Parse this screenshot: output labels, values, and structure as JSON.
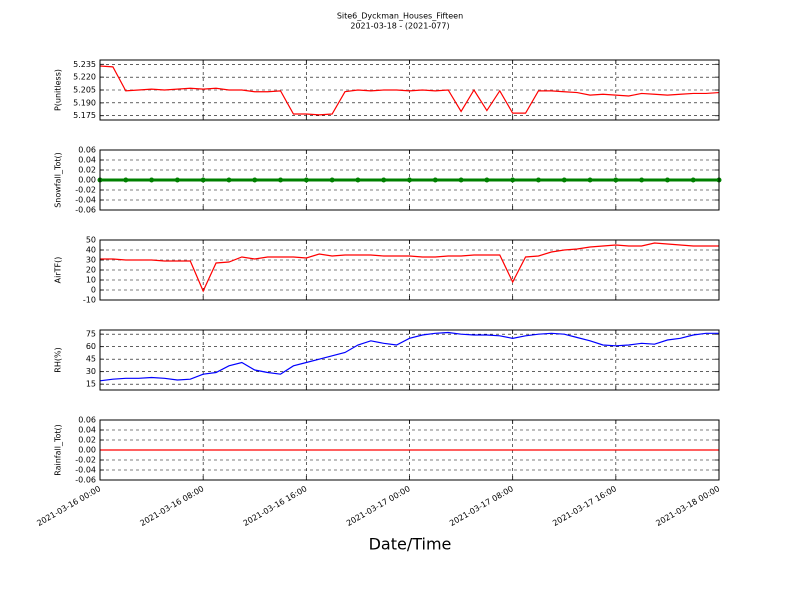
{
  "chart_data": [
    {
      "type": "line",
      "title": "Site6_Dyckman_Houses_Fifteen",
      "subtitle": "2021-03-18 - (2021-077)",
      "y_label": "P(unitless)",
      "x": [
        "2021-03-16 00:00",
        "2021-03-16 01:00",
        "2021-03-16 02:00",
        "2021-03-16 03:00",
        "2021-03-16 04:00",
        "2021-03-16 05:00",
        "2021-03-16 06:00",
        "2021-03-16 07:00",
        "2021-03-16 08:00",
        "2021-03-16 09:00",
        "2021-03-16 10:00",
        "2021-03-16 11:00",
        "2021-03-16 12:00",
        "2021-03-16 13:00",
        "2021-03-16 14:00",
        "2021-03-16 15:00",
        "2021-03-16 16:00",
        "2021-03-16 17:00",
        "2021-03-16 18:00",
        "2021-03-16 19:00",
        "2021-03-16 20:00",
        "2021-03-16 21:00",
        "2021-03-16 22:00",
        "2021-03-16 23:00",
        "2021-03-17 00:00",
        "2021-03-17 01:00",
        "2021-03-17 02:00",
        "2021-03-17 03:00",
        "2021-03-17 04:00",
        "2021-03-17 05:00",
        "2021-03-17 06:00",
        "2021-03-17 07:00",
        "2021-03-17 08:00",
        "2021-03-17 09:00",
        "2021-03-17 10:00",
        "2021-03-17 11:00",
        "2021-03-17 12:00",
        "2021-03-17 13:00",
        "2021-03-17 14:00",
        "2021-03-17 15:00",
        "2021-03-17 16:00",
        "2021-03-17 17:00",
        "2021-03-17 18:00",
        "2021-03-17 19:00",
        "2021-03-17 20:00",
        "2021-03-17 21:00",
        "2021-03-17 22:00",
        "2021-03-17 23:00",
        "2021-03-18 00:00"
      ],
      "series": [
        {
          "color": "#ff0000",
          "values": [
            5.233,
            5.232,
            5.204,
            5.205,
            5.206,
            5.205,
            5.206,
            5.207,
            5.206,
            5.207,
            5.205,
            5.205,
            5.203,
            5.203,
            5.204,
            5.177,
            5.177,
            5.176,
            5.177,
            5.203,
            5.205,
            5.204,
            5.205,
            5.205,
            5.204,
            5.205,
            5.204,
            5.205,
            5.18,
            5.205,
            5.181,
            5.204,
            5.178,
            5.178,
            5.204,
            5.204,
            5.203,
            5.202,
            5.199,
            5.2,
            5.199,
            5.198,
            5.201,
            5.2,
            5.199,
            5.2,
            5.201,
            5.201,
            5.202
          ]
        }
      ],
      "xlim": [
        "2021-03-16 00:00",
        "2021-03-18 00:00"
      ],
      "xticks": [
        "2021-03-16 00:00",
        "2021-03-16 08:00",
        "2021-03-16 16:00",
        "2021-03-17 00:00",
        "2021-03-17 08:00",
        "2021-03-17 16:00",
        "2021-03-18 00:00"
      ],
      "ylim": [
        5.17,
        5.24
      ],
      "yticks": [
        5.175,
        {
          "value": 5.19,
          "label": "5.190"
        },
        5.205,
        {
          "value": 5.22,
          "label": "5.220"
        },
        5.235
      ],
      "grid": true
    },
    {
      "type": "line",
      "y_label": "Snowfall_Tot()",
      "marker": true,
      "x": [
        "2021-03-16 00:00",
        "2021-03-16 02:00",
        "2021-03-16 04:00",
        "2021-03-16 06:00",
        "2021-03-16 08:00",
        "2021-03-16 10:00",
        "2021-03-16 12:00",
        "2021-03-16 14:00",
        "2021-03-16 16:00",
        "2021-03-16 18:00",
        "2021-03-16 20:00",
        "2021-03-16 22:00",
        "2021-03-17 00:00",
        "2021-03-17 02:00",
        "2021-03-17 04:00",
        "2021-03-17 06:00",
        "2021-03-17 08:00",
        "2021-03-17 10:00",
        "2021-03-17 12:00",
        "2021-03-17 14:00",
        "2021-03-17 16:00",
        "2021-03-17 18:00",
        "2021-03-17 20:00",
        "2021-03-17 22:00",
        "2021-03-18 00:00"
      ],
      "series": [
        {
          "color": "#008000",
          "values": [
            0,
            0,
            0,
            0,
            0,
            0,
            0,
            0,
            0,
            0,
            0,
            0,
            0,
            0,
            0,
            0,
            0,
            0,
            0,
            0,
            0,
            0,
            0,
            0,
            0
          ]
        }
      ],
      "xlim": [
        "2021-03-16 00:00",
        "2021-03-18 00:00"
      ],
      "xticks": [
        "2021-03-16 00:00",
        "2021-03-16 08:00",
        "2021-03-16 16:00",
        "2021-03-17 00:00",
        "2021-03-17 08:00",
        "2021-03-17 16:00",
        "2021-03-18 00:00"
      ],
      "ylim": [
        -0.06,
        0.06
      ],
      "yticks": [
        -0.06,
        -0.04,
        -0.02,
        {
          "value": 0,
          "label": "0.00"
        },
        0.02,
        0.04,
        0.06
      ],
      "grid": true
    },
    {
      "type": "line",
      "y_label": "AirTF()",
      "x": [
        "2021-03-16 00:00",
        "2021-03-16 01:00",
        "2021-03-16 02:00",
        "2021-03-16 03:00",
        "2021-03-16 04:00",
        "2021-03-16 05:00",
        "2021-03-16 06:00",
        "2021-03-16 07:00",
        "2021-03-16 08:00",
        "2021-03-16 09:00",
        "2021-03-16 10:00",
        "2021-03-16 11:00",
        "2021-03-16 12:00",
        "2021-03-16 13:00",
        "2021-03-16 14:00",
        "2021-03-16 15:00",
        "2021-03-16 16:00",
        "2021-03-16 17:00",
        "2021-03-16 18:00",
        "2021-03-16 19:00",
        "2021-03-16 20:00",
        "2021-03-16 21:00",
        "2021-03-16 22:00",
        "2021-03-16 23:00",
        "2021-03-17 00:00",
        "2021-03-17 01:00",
        "2021-03-17 02:00",
        "2021-03-17 03:00",
        "2021-03-17 04:00",
        "2021-03-17 05:00",
        "2021-03-17 06:00",
        "2021-03-17 07:00",
        "2021-03-17 08:00",
        "2021-03-17 09:00",
        "2021-03-17 10:00",
        "2021-03-17 11:00",
        "2021-03-17 12:00",
        "2021-03-17 13:00",
        "2021-03-17 14:00",
        "2021-03-17 15:00",
        "2021-03-17 16:00",
        "2021-03-17 17:00",
        "2021-03-17 18:00",
        "2021-03-17 19:00",
        "2021-03-17 20:00",
        "2021-03-17 21:00",
        "2021-03-17 22:00",
        "2021-03-17 23:00",
        "2021-03-18 00:00"
      ],
      "series": [
        {
          "color": "#ff0000",
          "values": [
            31,
            31,
            30,
            30,
            30,
            29,
            29,
            29,
            -1,
            27,
            28,
            33,
            31,
            33,
            33,
            33,
            32,
            36,
            34,
            35,
            35,
            35,
            34,
            34,
            34,
            33,
            33,
            34,
            34,
            35,
            35,
            35,
            8,
            33,
            34,
            38,
            40,
            41,
            43,
            44,
            45,
            44,
            44,
            47,
            46,
            45,
            44,
            44,
            44
          ]
        }
      ],
      "xlim": [
        "2021-03-16 00:00",
        "2021-03-18 00:00"
      ],
      "xticks": [
        "2021-03-16 00:00",
        "2021-03-16 08:00",
        "2021-03-16 16:00",
        "2021-03-17 00:00",
        "2021-03-17 08:00",
        "2021-03-17 16:00",
        "2021-03-18 00:00"
      ],
      "ylim": [
        -10,
        50
      ],
      "yticks": [
        -10,
        0,
        10,
        20,
        30,
        40,
        50
      ],
      "grid": true
    },
    {
      "type": "line",
      "y_label": "RH(%)",
      "x": [
        "2021-03-16 00:00",
        "2021-03-16 01:00",
        "2021-03-16 02:00",
        "2021-03-16 03:00",
        "2021-03-16 04:00",
        "2021-03-16 05:00",
        "2021-03-16 06:00",
        "2021-03-16 07:00",
        "2021-03-16 08:00",
        "2021-03-16 09:00",
        "2021-03-16 10:00",
        "2021-03-16 11:00",
        "2021-03-16 12:00",
        "2021-03-16 13:00",
        "2021-03-16 14:00",
        "2021-03-16 15:00",
        "2021-03-16 16:00",
        "2021-03-16 17:00",
        "2021-03-16 18:00",
        "2021-03-16 19:00",
        "2021-03-16 20:00",
        "2021-03-16 21:00",
        "2021-03-16 22:00",
        "2021-03-16 23:00",
        "2021-03-17 00:00",
        "2021-03-17 01:00",
        "2021-03-17 02:00",
        "2021-03-17 03:00",
        "2021-03-17 04:00",
        "2021-03-17 05:00",
        "2021-03-17 06:00",
        "2021-03-17 07:00",
        "2021-03-17 08:00",
        "2021-03-17 09:00",
        "2021-03-17 10:00",
        "2021-03-17 11:00",
        "2021-03-17 12:00",
        "2021-03-17 13:00",
        "2021-03-17 14:00",
        "2021-03-17 15:00",
        "2021-03-17 16:00",
        "2021-03-17 17:00",
        "2021-03-17 18:00",
        "2021-03-17 19:00",
        "2021-03-17 20:00",
        "2021-03-17 21:00",
        "2021-03-17 22:00",
        "2021-03-17 23:00",
        "2021-03-18 00:00"
      ],
      "series": [
        {
          "color": "#0000ff",
          "values": [
            19,
            21,
            22,
            22,
            23,
            22,
            20,
            21,
            27,
            29,
            37,
            41,
            32,
            29,
            27,
            37,
            41,
            45,
            49,
            53,
            62,
            67,
            64,
            62,
            70,
            74,
            76,
            77,
            75,
            74,
            74,
            73,
            70,
            73,
            75,
            76,
            75,
            71,
            67,
            62,
            61,
            62,
            64,
            63,
            68,
            70,
            74,
            76,
            76
          ]
        }
      ],
      "xlim": [
        "2021-03-16 00:00",
        "2021-03-18 00:00"
      ],
      "xticks": [
        "2021-03-16 00:00",
        "2021-03-16 08:00",
        "2021-03-16 16:00",
        "2021-03-17 00:00",
        "2021-03-17 08:00",
        "2021-03-17 16:00",
        "2021-03-18 00:00"
      ],
      "ylim": [
        8,
        80
      ],
      "yticks": [
        15,
        30,
        45,
        60,
        75
      ],
      "grid": true
    },
    {
      "type": "line",
      "y_label": "Rainfall_Tot()",
      "x_label": "Date/Time",
      "x": [
        "2021-03-16 00:00",
        "2021-03-16 02:00",
        "2021-03-16 04:00",
        "2021-03-16 06:00",
        "2021-03-16 08:00",
        "2021-03-16 10:00",
        "2021-03-16 12:00",
        "2021-03-16 14:00",
        "2021-03-16 16:00",
        "2021-03-16 18:00",
        "2021-03-16 20:00",
        "2021-03-16 22:00",
        "2021-03-17 00:00",
        "2021-03-17 02:00",
        "2021-03-17 04:00",
        "2021-03-17 06:00",
        "2021-03-17 08:00",
        "2021-03-17 10:00",
        "2021-03-17 12:00",
        "2021-03-17 14:00",
        "2021-03-17 16:00",
        "2021-03-17 18:00",
        "2021-03-17 20:00",
        "2021-03-17 22:00",
        "2021-03-18 00:00"
      ],
      "series": [
        {
          "color": "#ff0000",
          "values": [
            0,
            0,
            0,
            0,
            0,
            0,
            0,
            0,
            0,
            0,
            0,
            0,
            0,
            0,
            0,
            0,
            0,
            0,
            0,
            0,
            0,
            0,
            0,
            0,
            0
          ]
        }
      ],
      "xlim": [
        "2021-03-16 00:00",
        "2021-03-18 00:00"
      ],
      "xticks": [
        "2021-03-16 00:00",
        "2021-03-16 08:00",
        "2021-03-16 16:00",
        "2021-03-17 00:00",
        "2021-03-17 08:00",
        "2021-03-17 16:00",
        "2021-03-18 00:00"
      ],
      "ylim": [
        -0.06,
        0.06
      ],
      "yticks": [
        -0.06,
        -0.04,
        -0.02,
        {
          "value": 0,
          "label": "0.00"
        },
        0.02,
        0.04,
        0.06
      ],
      "grid": true
    }
  ]
}
